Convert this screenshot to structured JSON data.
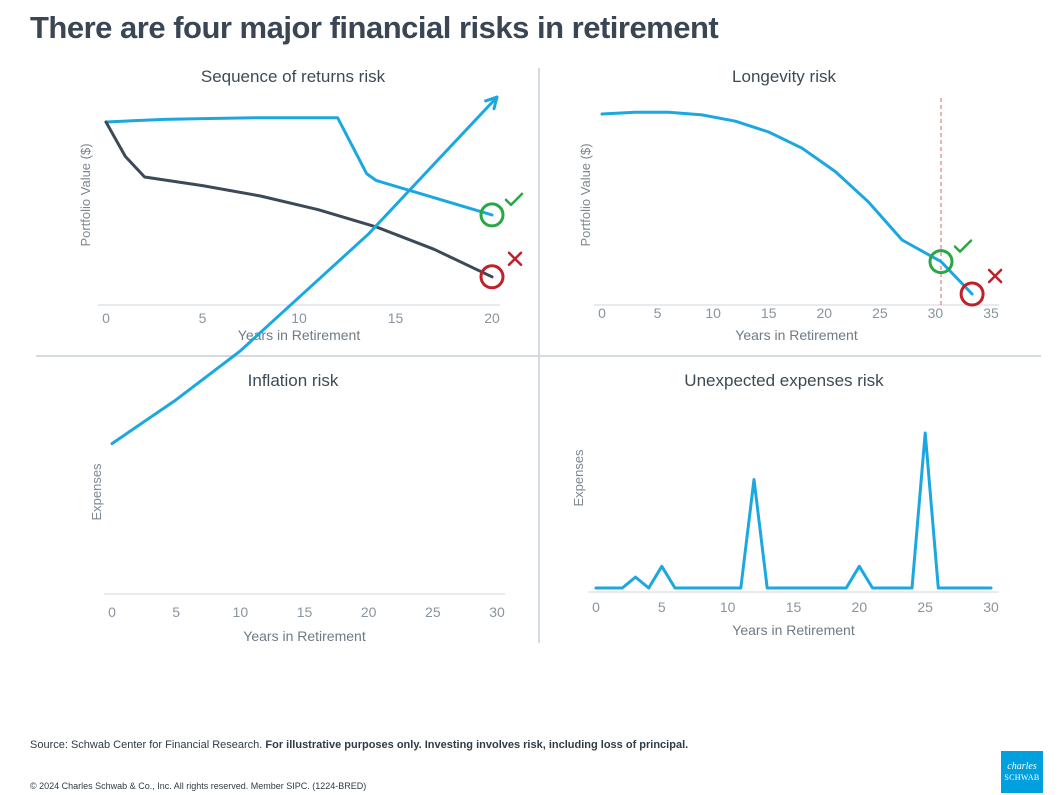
{
  "title": "There are four major financial risks in retirement",
  "footer": {
    "source_prefix": "Source: Schwab Center for Financial Research.",
    "source_bold": "For illustrative purposes only. Investing involves risk, including loss of principal.",
    "copyright": "© 2024 Charles Schwab & Co., Inc. All rights reserved. Member SIPC. (1224-BRED)"
  },
  "logo": {
    "line1": "charles",
    "line2": "SCHWAB",
    "color": "#00a0df"
  },
  "colors": {
    "blue": "#1ba8e0",
    "dark": "#3c4a57",
    "good": "#27a845",
    "bad": "#c0202a",
    "axis": "#cfd6dd",
    "divider": "#d3dae1"
  },
  "chart_data": [
    {
      "type": "line",
      "title": "Sequence of returns risk",
      "xlabel": "Years in Retirement",
      "ylabel": "Portfolio Value ($)",
      "xlim": [
        0,
        20
      ],
      "ylim": [
        0,
        100
      ],
      "xticks": [
        "0",
        "5",
        "10",
        "15",
        "20"
      ],
      "series": [
        {
          "color": "#1ba8e0",
          "x": [
            0,
            1,
            3,
            5,
            8,
            10,
            12,
            13.5,
            14,
            17,
            20
          ],
          "y": [
            100,
            100.5,
            101.5,
            102,
            102.5,
            102.5,
            102.5,
            70,
            66,
            56,
            46
          ]
        },
        {
          "color": "#3c4a57",
          "x": [
            0,
            1,
            2,
            5,
            8,
            11,
            14,
            17,
            20
          ],
          "y": [
            100,
            80,
            68,
            63,
            57,
            49,
            39,
            26,
            10
          ]
        }
      ],
      "annotations": [
        {
          "x": 20,
          "y": 46,
          "marker": "check",
          "color": "#27a845"
        },
        {
          "x": 20,
          "y": 10,
          "marker": "cross",
          "color": "#c0202a"
        }
      ]
    },
    {
      "type": "line",
      "title": "Longevity risk",
      "xlabel": "Years in Retirement",
      "ylabel": "Portfolio Value ($)",
      "xlim": [
        0,
        35
      ],
      "ylim": [
        0,
        100
      ],
      "xticks": [
        "0",
        "5",
        "10",
        "15",
        "20",
        "25",
        "30",
        "35"
      ],
      "vline": 30.5,
      "series": [
        {
          "color": "#1ba8e0",
          "x": [
            0,
            3,
            6,
            9,
            12,
            15,
            18,
            21,
            24,
            27,
            30.5,
            33.3
          ],
          "y": [
            100,
            101,
            101,
            99.5,
            96,
            90,
            81,
            68,
            51,
            30,
            18,
            0
          ]
        }
      ],
      "annotations": [
        {
          "x": 30.5,
          "y": 18,
          "marker": "check",
          "color": "#27a845"
        },
        {
          "x": 33.3,
          "y": 0,
          "marker": "cross",
          "color": "#c0202a"
        }
      ]
    },
    {
      "type": "line",
      "title": "Inflation risk",
      "xlabel": "Years in Retirement",
      "ylabel": "Expenses",
      "xlim": [
        0,
        30
      ],
      "ylim": [
        0,
        100
      ],
      "xticks": [
        "0",
        "5",
        "10",
        "15",
        "20",
        "25",
        "30"
      ],
      "arrow": true,
      "series": [
        {
          "color": "#1ba8e0",
          "x": [
            0,
            5,
            10,
            15,
            20,
            25,
            30
          ],
          "y": [
            30,
            39,
            49,
            61,
            73,
            87,
            101
          ]
        }
      ]
    },
    {
      "type": "line",
      "title": "Unexpected expenses risk",
      "xlabel": "Years in Retirement",
      "ylabel": "Expenses",
      "xlim": [
        0,
        30
      ],
      "ylim": [
        0,
        100
      ],
      "xticks": [
        "0",
        "5",
        "10",
        "15",
        "20",
        "25",
        "30"
      ],
      "series": [
        {
          "color": "#1ba8e0",
          "x": [
            0,
            2,
            3,
            4,
            5,
            6,
            11,
            12,
            13,
            19,
            20,
            21,
            24,
            25,
            26,
            30
          ],
          "y": [
            0,
            0,
            7,
            0,
            14,
            0,
            0,
            70,
            0,
            0,
            14,
            0,
            0,
            100,
            0,
            0
          ]
        }
      ]
    }
  ]
}
